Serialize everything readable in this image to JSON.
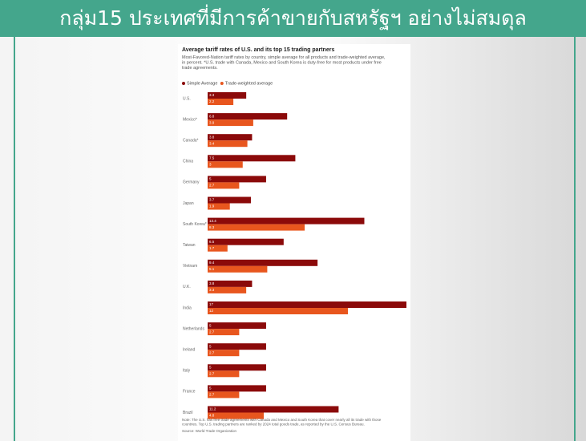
{
  "header": {
    "title": "กลุ่ม15 ประเทศที่มีการค้าขายกับสหรัฐฯ อย่างไม่สมดุล"
  },
  "chart_data": {
    "type": "bar",
    "orientation": "horizontal",
    "title": "Average tariff rates of U.S. and its top 15 trading partners",
    "subtitle": "Most-Favored-Nation tariff rates by country, simple average for all products and trade-weighted average, in percent. *U.S. trade with Canada, Mexico and South Korea is duty-free for most products under free trade agreements.",
    "categories": [
      "U.S.",
      "Mexico*",
      "Canada*",
      "China",
      "Germany",
      "Japan",
      "South Korea*",
      "Taiwan",
      "Vietnam",
      "U.K.",
      "India",
      "Netherlands",
      "Ireland",
      "Italy",
      "France",
      "Brazil"
    ],
    "series": [
      {
        "name": "Simple Average",
        "color": "#8b0a0a",
        "values": [
          3.3,
          6.8,
          3.8,
          7.5,
          5,
          3.7,
          13.4,
          6.5,
          9.4,
          3.8,
          17,
          5,
          5,
          5,
          5,
          11.2
        ]
      },
      {
        "name": "Trade-weighted average",
        "color": "#e8561e",
        "values": [
          2.2,
          3.9,
          3.4,
          3.0,
          2.7,
          1.9,
          8.3,
          1.7,
          5.1,
          3.3,
          12.0,
          2.7,
          2.7,
          2.7,
          2.7,
          4.8
        ]
      }
    ],
    "note": "Note: The U.S. has free trade agreements with Canada and Mexico and South Korea that cover nearly all its trade with those countries. Top U.S. trading partners are ranked by 2024 total goods trade, as reported by the U.S. Census Bureau.",
    "source": "Source: World Trade Organization"
  }
}
